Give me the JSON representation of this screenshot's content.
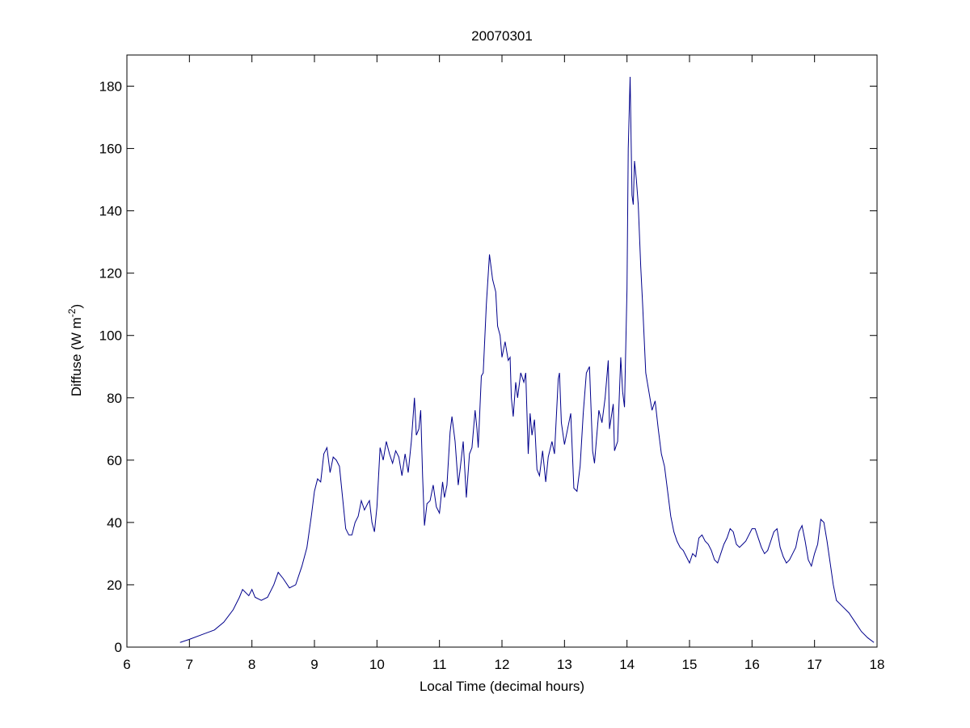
{
  "chart_data": {
    "type": "line",
    "title": "20070301",
    "xlabel": "Local Time (decimal hours)",
    "ylabel": {
      "text": "Diffuse (W m",
      "superscript": "-2",
      "suffix": ")"
    },
    "xlim": [
      6,
      18
    ],
    "xticks": [
      6,
      7,
      8,
      9,
      10,
      11,
      12,
      13,
      14,
      15,
      16,
      17,
      18
    ],
    "ylim": [
      0,
      190
    ],
    "yticks": [
      0,
      20,
      40,
      60,
      80,
      100,
      120,
      140,
      160,
      180
    ],
    "grid": false,
    "x": [
      6.85,
      7.0,
      7.2,
      7.4,
      7.55,
      7.7,
      7.8,
      7.85,
      7.95,
      8.0,
      8.05,
      8.15,
      8.25,
      8.35,
      8.42,
      8.5,
      8.6,
      8.7,
      8.8,
      8.88,
      8.95,
      9.0,
      9.05,
      9.1,
      9.15,
      9.2,
      9.25,
      9.3,
      9.35,
      9.4,
      9.45,
      9.5,
      9.55,
      9.6,
      9.65,
      9.7,
      9.75,
      9.8,
      9.85,
      9.88,
      9.92,
      9.96,
      10.0,
      10.05,
      10.1,
      10.15,
      10.2,
      10.25,
      10.3,
      10.35,
      10.4,
      10.45,
      10.5,
      10.55,
      10.6,
      10.63,
      10.67,
      10.7,
      10.73,
      10.76,
      10.8,
      10.85,
      10.9,
      10.95,
      11.0,
      11.05,
      11.08,
      11.12,
      11.17,
      11.2,
      11.25,
      11.3,
      11.33,
      11.38,
      11.43,
      11.48,
      11.52,
      11.57,
      11.6,
      11.62,
      11.67,
      11.7,
      11.75,
      11.8,
      11.85,
      11.9,
      11.93,
      11.97,
      12.0,
      12.05,
      12.1,
      12.13,
      12.15,
      12.18,
      12.22,
      12.25,
      12.3,
      12.35,
      12.38,
      12.42,
      12.45,
      12.48,
      12.52,
      12.56,
      12.6,
      12.65,
      12.7,
      12.74,
      12.8,
      12.84,
      12.9,
      12.92,
      12.95,
      13.0,
      13.05,
      13.1,
      13.15,
      13.2,
      13.25,
      13.3,
      13.35,
      13.4,
      13.45,
      13.48,
      13.55,
      13.6,
      13.65,
      13.7,
      13.72,
      13.78,
      13.8,
      13.85,
      13.9,
      13.93,
      13.96,
      14.0,
      14.02,
      14.05,
      14.08,
      14.1,
      14.12,
      14.15,
      14.18,
      14.22,
      14.25,
      14.3,
      14.35,
      14.4,
      14.45,
      14.5,
      14.55,
      14.6,
      14.65,
      14.7,
      14.75,
      14.8,
      14.85,
      14.9,
      14.95,
      15.0,
      15.05,
      15.1,
      15.15,
      15.2,
      15.25,
      15.3,
      15.35,
      15.4,
      15.45,
      15.5,
      15.55,
      15.6,
      15.65,
      15.7,
      15.75,
      15.8,
      15.85,
      15.9,
      15.95,
      16.0,
      16.05,
      16.1,
      16.15,
      16.2,
      16.25,
      16.3,
      16.35,
      16.4,
      16.45,
      16.5,
      16.55,
      16.6,
      16.65,
      16.7,
      16.75,
      16.8,
      16.85,
      16.9,
      16.95,
      17.0,
      17.05,
      17.1,
      17.15,
      17.2,
      17.25,
      17.3,
      17.35,
      17.45,
      17.55,
      17.65,
      17.75,
      17.85,
      17.95
    ],
    "series": [
      {
        "color": "#00008b",
        "values": [
          1.5,
          2.5,
          4,
          5.5,
          8,
          12,
          16,
          18.5,
          16.5,
          18.5,
          16,
          15,
          16,
          20,
          24,
          22,
          19,
          20,
          26,
          32,
          42,
          50,
          54,
          53,
          62,
          64,
          56,
          61,
          60,
          58,
          48,
          38,
          36,
          36,
          40,
          42,
          47,
          44,
          46,
          47,
          40,
          37,
          45,
          64,
          60,
          66,
          62,
          59,
          63,
          61,
          55,
          62,
          56,
          66,
          80,
          68,
          70,
          76,
          55,
          39,
          46,
          47,
          52,
          45,
          43,
          53,
          48,
          52,
          69,
          74,
          66,
          52,
          57,
          66,
          48,
          62,
          64,
          76,
          70,
          64,
          87,
          88,
          110,
          126,
          118,
          114,
          103,
          100,
          93,
          98,
          92,
          93,
          80,
          74,
          85,
          80,
          88,
          85,
          88,
          62,
          75,
          68,
          73,
          57,
          55,
          63,
          53,
          61,
          66,
          62,
          86,
          88,
          72,
          65,
          70,
          75,
          51,
          50,
          58,
          75,
          88,
          90,
          63,
          59,
          76,
          72,
          80,
          92,
          70,
          78,
          63,
          66,
          93,
          82,
          77,
          115,
          160,
          183,
          145,
          142,
          156,
          150,
          142,
          122,
          110,
          88,
          82,
          76,
          79,
          70,
          62,
          58,
          50,
          42,
          37,
          34,
          32,
          31,
          29,
          27,
          30,
          29,
          35,
          36,
          34,
          33,
          31,
          28,
          27,
          30,
          33,
          35,
          38,
          37,
          33,
          32,
          33,
          34,
          36,
          38,
          38,
          35,
          32,
          30,
          31,
          34,
          37,
          38,
          32,
          29,
          27,
          28,
          30,
          32,
          37,
          39,
          34,
          28,
          26,
          30,
          33,
          41,
          40,
          34,
          27,
          20,
          15,
          13,
          11,
          8,
          5,
          3,
          1.5
        ]
      }
    ]
  }
}
